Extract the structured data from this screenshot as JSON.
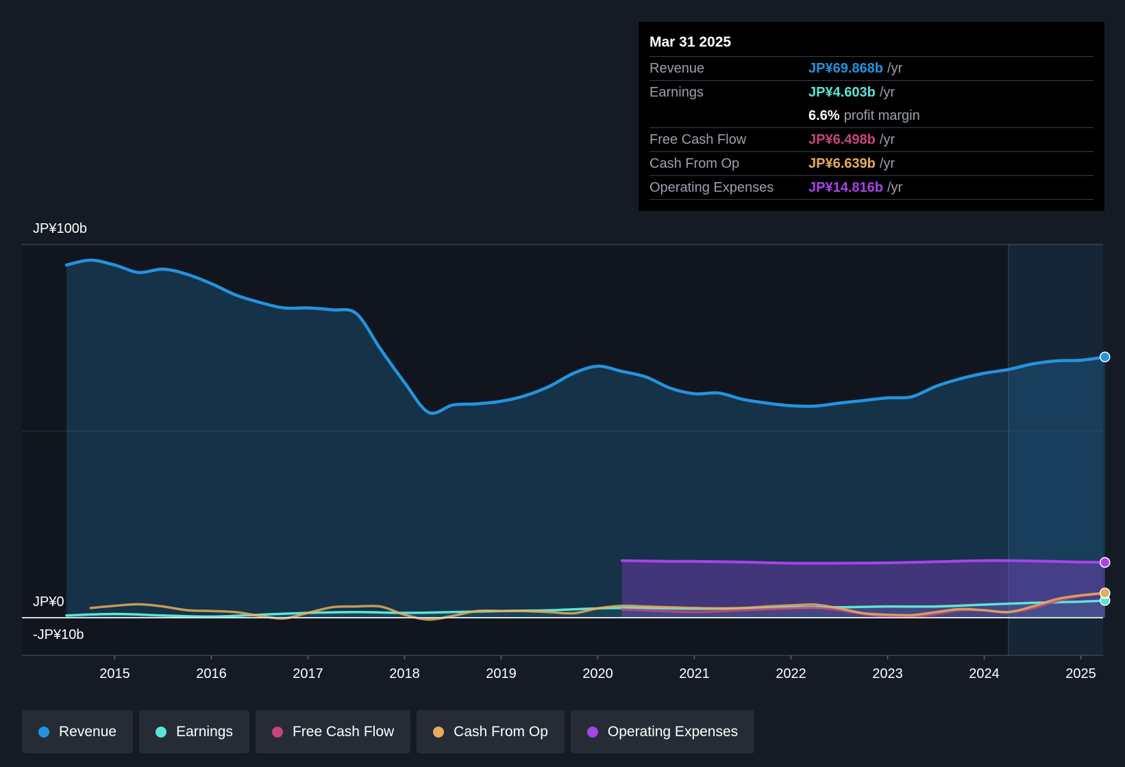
{
  "tooltip": {
    "date": "Mar 31 2025",
    "revenue": {
      "label": "Revenue",
      "value": "JP¥69.868b",
      "unit": "/yr",
      "color": "#2394df"
    },
    "earnings": {
      "label": "Earnings",
      "value": "JP¥4.603b",
      "unit": "/yr",
      "color": "#5ce5d5"
    },
    "margin": {
      "value": "6.6%",
      "label": "profit margin"
    },
    "fcf": {
      "label": "Free Cash Flow",
      "value": "JP¥6.498b",
      "unit": "/yr",
      "color": "#c5467c"
    },
    "cfo": {
      "label": "Cash From Op",
      "value": "JP¥6.639b",
      "unit": "/yr",
      "color": "#e8ac5c"
    },
    "opex": {
      "label": "Operating Expenses",
      "value": "JP¥14.816b",
      "unit": "/yr",
      "color": "#a843ea"
    }
  },
  "legend": [
    {
      "label": "Revenue",
      "color": "#2394df"
    },
    {
      "label": "Earnings",
      "color": "#5ce5d5"
    },
    {
      "label": "Free Cash Flow",
      "color": "#c5467c"
    },
    {
      "label": "Cash From Op",
      "color": "#e8ac5c"
    },
    {
      "label": "Operating Expenses",
      "color": "#a843ea"
    }
  ],
  "chart_data": {
    "type": "area",
    "title": "",
    "xlabel": "",
    "ylabel": "",
    "ylim": [
      -10,
      100
    ],
    "xlim": [
      2014.5,
      2025.25
    ],
    "y_tick_labels": [
      "JP¥100b",
      "JP¥0",
      "-JP¥10b"
    ],
    "y_tick_values": [
      100,
      0,
      -10
    ],
    "x_ticks": [
      2015,
      2016,
      2017,
      2018,
      2019,
      2020,
      2021,
      2022,
      2023,
      2024,
      2025
    ],
    "forecast_start": 2024.25,
    "series": [
      {
        "name": "Revenue",
        "color": "#2394df",
        "x": [
          2014.5,
          2014.75,
          2015.0,
          2015.25,
          2015.5,
          2015.75,
          2016.0,
          2016.25,
          2016.5,
          2016.75,
          2017.0,
          2017.25,
          2017.5,
          2017.75,
          2018.0,
          2018.25,
          2018.5,
          2018.75,
          2019.0,
          2019.25,
          2019.5,
          2019.75,
          2020.0,
          2020.25,
          2020.5,
          2020.75,
          2021.0,
          2021.25,
          2021.5,
          2021.75,
          2022.0,
          2022.25,
          2022.5,
          2022.75,
          2023.0,
          2023.25,
          2023.5,
          2023.75,
          2024.0,
          2024.25,
          2024.5,
          2024.75,
          2025.0,
          2025.25
        ],
        "values": [
          94.5,
          95.8,
          94.5,
          92.5,
          93.4,
          92.0,
          89.5,
          86.5,
          84.5,
          83.0,
          83.0,
          82.5,
          81.5,
          72.0,
          63.0,
          55.0,
          57.0,
          57.3,
          58.0,
          59.5,
          62.0,
          65.5,
          67.4,
          66.0,
          64.5,
          61.5,
          60.0,
          60.2,
          58.5,
          57.5,
          56.8,
          56.7,
          57.5,
          58.2,
          58.9,
          59.2,
          62.0,
          64.0,
          65.5,
          66.5,
          68.0,
          68.8,
          69.0,
          69.868
        ]
      },
      {
        "name": "Earnings",
        "color": "#5ce5d5",
        "x": [
          2014.5,
          2015.0,
          2015.5,
          2016.0,
          2016.5,
          2017.0,
          2017.5,
          2018.0,
          2018.5,
          2019.0,
          2019.5,
          2020.0,
          2020.25,
          2020.5,
          2021.0,
          2021.5,
          2022.0,
          2022.5,
          2023.0,
          2023.5,
          2024.0,
          2024.5,
          2025.0,
          2025.25
        ],
        "values": [
          0.6,
          1.0,
          0.6,
          0.3,
          0.8,
          1.3,
          1.5,
          1.3,
          1.5,
          1.8,
          2.0,
          2.5,
          2.6,
          2.6,
          2.4,
          2.5,
          2.8,
          2.8,
          3.0,
          3.0,
          3.5,
          4.0,
          4.3,
          4.603
        ]
      },
      {
        "name": "Free Cash Flow",
        "color": "#c5467c",
        "x": [
          2020.25,
          2020.5,
          2021.0,
          2021.5,
          2022.0,
          2022.25,
          2022.5,
          2022.75,
          2023.0,
          2023.25,
          2023.5,
          2023.75,
          2024.0,
          2024.25,
          2024.5,
          2024.75,
          2025.0,
          2025.25
        ],
        "values": [
          2.2,
          2.0,
          1.5,
          2.0,
          2.5,
          2.6,
          2.0,
          1.0,
          0.3,
          0.2,
          1.0,
          2.0,
          2.0,
          1.5,
          2.5,
          4.5,
          5.8,
          6.498
        ]
      },
      {
        "name": "Cash From Op",
        "color": "#e8ac5c",
        "x": [
          2014.75,
          2015.0,
          2015.25,
          2015.5,
          2015.75,
          2016.0,
          2016.25,
          2016.5,
          2016.75,
          2017.0,
          2017.25,
          2017.5,
          2017.75,
          2018.0,
          2018.25,
          2018.5,
          2018.75,
          2019.0,
          2019.25,
          2019.5,
          2019.75,
          2020.0,
          2020.25,
          2020.5,
          2020.75,
          2021.0,
          2021.25,
          2021.5,
          2021.75,
          2022.0,
          2022.25,
          2022.5,
          2022.75,
          2023.0,
          2023.25,
          2023.5,
          2023.75,
          2024.0,
          2024.25,
          2024.5,
          2024.75,
          2025.0,
          2025.25
        ],
        "values": [
          2.6,
          3.2,
          3.6,
          3.0,
          2.0,
          1.8,
          1.5,
          0.5,
          -0.2,
          1.3,
          2.8,
          3.0,
          3.0,
          0.8,
          -0.5,
          0.5,
          1.8,
          1.8,
          1.8,
          1.5,
          1.2,
          2.5,
          3.2,
          3.0,
          2.8,
          2.6,
          2.5,
          2.6,
          3.0,
          3.3,
          3.5,
          2.5,
          1.2,
          0.8,
          0.7,
          1.5,
          2.3,
          2.0,
          1.5,
          3.0,
          5.0,
          6.0,
          6.639
        ]
      },
      {
        "name": "Operating Expenses",
        "color": "#a843ea",
        "x": [
          2020.25,
          2020.75,
          2021.0,
          2021.5,
          2022.0,
          2022.5,
          2023.0,
          2023.5,
          2024.0,
          2024.5,
          2025.0,
          2025.25
        ],
        "values": [
          15.3,
          15.1,
          15.1,
          14.9,
          14.6,
          14.6,
          14.7,
          15.0,
          15.3,
          15.2,
          14.9,
          14.816
        ]
      }
    ]
  }
}
